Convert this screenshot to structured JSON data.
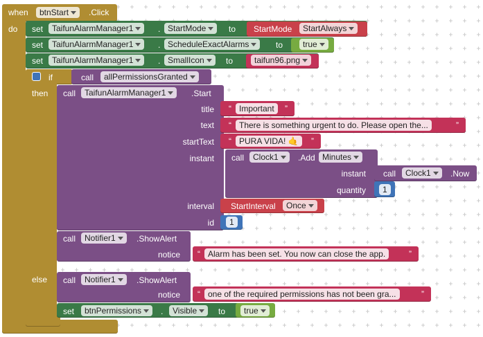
{
  "event": {
    "when": "when",
    "component": "btnStart",
    "handler": ".Click",
    "do": "do"
  },
  "set_rows": [
    {
      "set": "set",
      "component": "TaifunAlarmManager1",
      "dot": ".",
      "property": "StartMode",
      "to": "to",
      "helper": "StartMode",
      "value": "StartAlways"
    },
    {
      "set": "set",
      "component": "TaifunAlarmManager1",
      "dot": ".",
      "property": "ScheduleExactAlarms",
      "to": "to",
      "value": "true"
    },
    {
      "set": "set",
      "component": "TaifunAlarmManager1",
      "dot": ".",
      "property": "SmallIcon",
      "to": "to",
      "value": "taifun96.png"
    }
  ],
  "if_block": {
    "if": "if",
    "call": "call",
    "procedure": "allPermissionsGranted",
    "then": "then",
    "else": "else"
  },
  "start_call": {
    "call": "call",
    "component": "TaifunAlarmManager1",
    "method": ".Start",
    "params": [
      "title",
      "text",
      "startText",
      "instant",
      "interval",
      "id"
    ],
    "title": "Important",
    "text": "There is something urgent to do. Please open the...",
    "startText": "PURA VIDA! 🤙",
    "interval_helper": "StartInterval",
    "interval": "Once",
    "id": 1
  },
  "clock_add": {
    "call": "call",
    "component": "Clock1",
    "method": ".Add",
    "unit": "Minutes",
    "params": [
      "instant",
      "quantity"
    ],
    "quantity": 1
  },
  "clock_now": {
    "call": "call",
    "component": "Clock1",
    "method": ".Now"
  },
  "alerts": [
    {
      "call": "call",
      "component": "Notifier1",
      "method": ".ShowAlert",
      "param": "notice",
      "notice": "Alarm has been set. You now can close the app."
    },
    {
      "call": "call",
      "component": "Notifier1",
      "method": ".ShowAlert",
      "param": "notice",
      "notice": "one of the required permissions has not been gra..."
    }
  ],
  "set_visible": {
    "set": "set",
    "component": "btnPermissions",
    "dot": ".",
    "property": "Visible",
    "to": "to",
    "value": "true"
  },
  "quotes": {
    "open": "“",
    "close": "”"
  }
}
